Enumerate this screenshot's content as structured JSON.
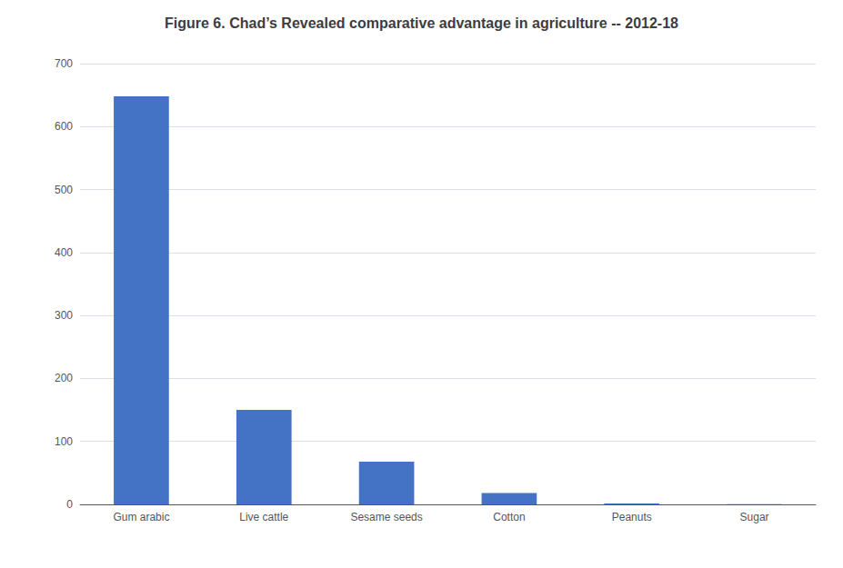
{
  "chart_data": {
    "type": "bar",
    "title": "Figure 6. Chad’s Revealed comparative advantage in agriculture -- 2012-18",
    "categories": [
      "Gum arabic",
      "Live cattle",
      "Sesame seeds",
      "Cotton",
      "Peanuts",
      "Sugar"
    ],
    "values": [
      648,
      150,
      68,
      18,
      1.5,
      0.5
    ],
    "color": "#4472C4",
    "ylim": [
      0,
      700
    ],
    "yticks": [
      0,
      100,
      200,
      300,
      400,
      500,
      600,
      700
    ],
    "grid": true
  }
}
